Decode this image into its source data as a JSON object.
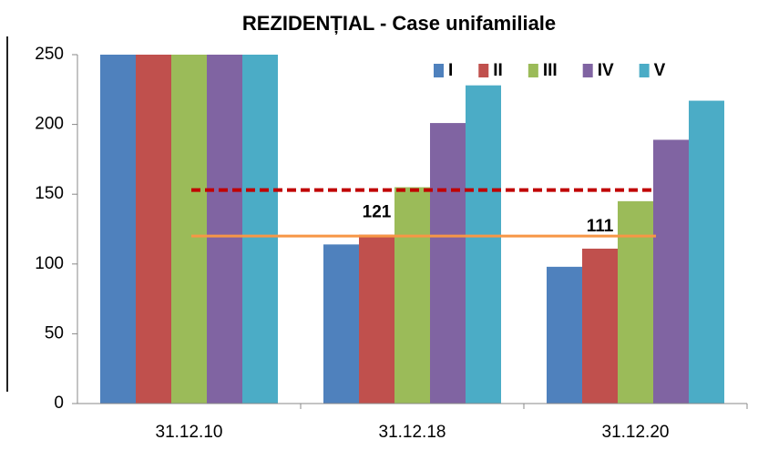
{
  "chart_data": {
    "type": "bar",
    "title": "REZIDENȚIAL - Case unifamiliale",
    "categories": [
      "31.12.10",
      "31.12.18",
      "31.12.20"
    ],
    "series": [
      {
        "name": "I",
        "color": "#4f81bd",
        "values": [
          250,
          114,
          98
        ]
      },
      {
        "name": "II",
        "color": "#c0504d",
        "values": [
          250,
          121,
          111
        ]
      },
      {
        "name": "III",
        "color": "#9bbb59",
        "values": [
          250,
          155,
          145
        ]
      },
      {
        "name": "IV",
        "color": "#8064a2",
        "values": [
          250,
          201,
          189
        ]
      },
      {
        "name": "V",
        "color": "#4bacc6",
        "values": [
          250,
          228,
          217
        ]
      }
    ],
    "annotations": [
      "121",
      "111"
    ],
    "reference_lines": [
      {
        "value": 153,
        "color": "#c00000",
        "style": "dashed"
      },
      {
        "value": 120,
        "color": "#f79646",
        "style": "solid"
      }
    ],
    "ylim": [
      0,
      250
    ],
    "yticks": [
      0,
      50,
      100,
      150,
      200,
      250
    ],
    "grid": false,
    "legend": "top-right"
  }
}
